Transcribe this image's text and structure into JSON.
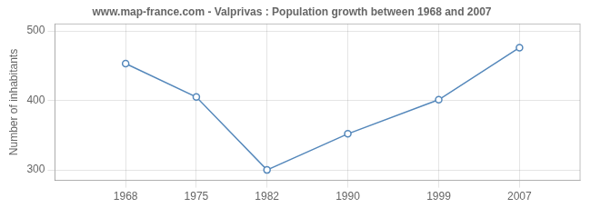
{
  "chart_data": {
    "type": "line",
    "title": "www.map-france.com - Valprivas : Population growth between 1968 and 2007",
    "ylabel": "Number of inhabitants",
    "x": [
      1968,
      1975,
      1982,
      1990,
      1999,
      2007
    ],
    "values": [
      453,
      405,
      300,
      352,
      401,
      476
    ],
    "color": "#5588bb",
    "marker": "circle",
    "xlim": [
      1961,
      2013
    ],
    "xticks": [
      1968,
      1975,
      1982,
      1990,
      1999,
      2007
    ],
    "ylim": [
      285,
      510
    ],
    "yticks": [
      300,
      400,
      500
    ],
    "grid": true
  }
}
